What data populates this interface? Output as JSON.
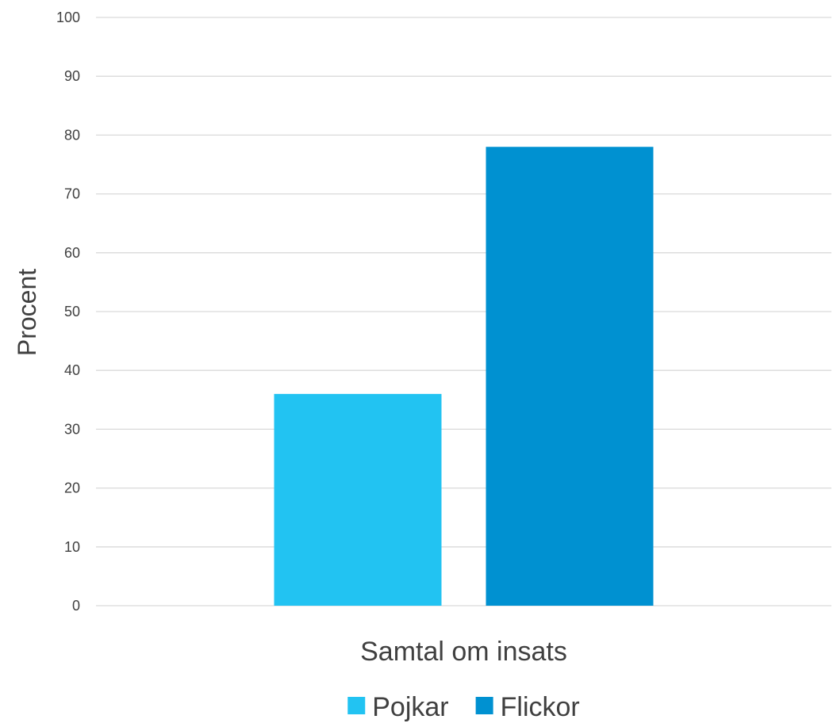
{
  "chart_data": {
    "type": "bar",
    "title": "",
    "xlabel": "",
    "ylabel": "Procent",
    "categories": [
      "Samtal om insats"
    ],
    "series": [
      {
        "name": "Pojkar",
        "values": [
          36
        ],
        "color": "#22c3f2"
      },
      {
        "name": "Flickor",
        "values": [
          78
        ],
        "color": "#0091d1"
      }
    ],
    "ylim": [
      0,
      100
    ],
    "yticks": [
      0,
      10,
      20,
      30,
      40,
      50,
      60,
      70,
      80,
      90,
      100
    ],
    "grid": true,
    "legend_position": "bottom"
  }
}
